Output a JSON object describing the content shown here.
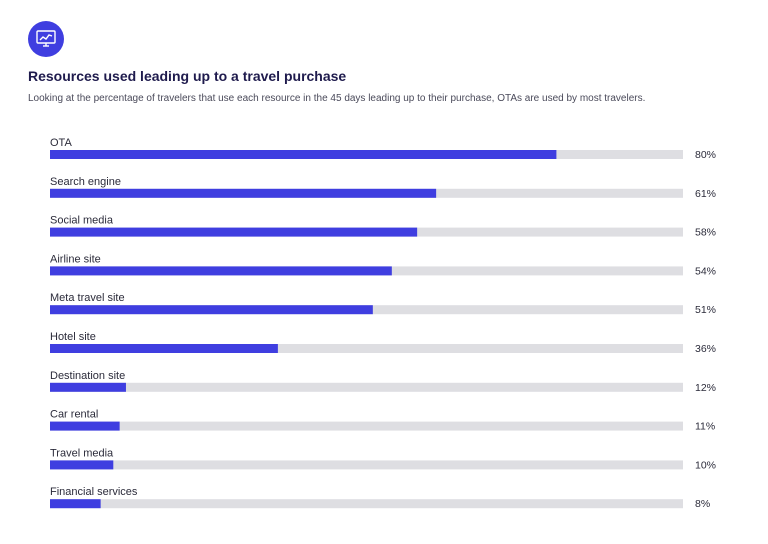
{
  "header": {
    "icon": "chart-monitor-icon",
    "accent_color": "#3f3ee0",
    "track_color": "#dedee2",
    "title": "Resources used leading up to a travel purchase",
    "subtitle": "Looking at the percentage of travelers that use each resource in the 45 days leading up to their purchase, OTAs are used by most travelers."
  },
  "chart_data": {
    "type": "bar",
    "orientation": "horizontal",
    "title": "Resources used leading up to a travel purchase",
    "xlabel": "",
    "ylabel": "",
    "xlim": [
      0,
      100
    ],
    "grid": false,
    "categories": [
      "OTA",
      "Search engine",
      "Social media",
      "Airline site",
      "Meta travel site",
      "Hotel site",
      "Destination site",
      "Car rental",
      "Travel media",
      "Financial services"
    ],
    "values": [
      80,
      61,
      58,
      54,
      51,
      36,
      12,
      11,
      10,
      8
    ],
    "value_labels": [
      "80%",
      "61%",
      "58%",
      "54%",
      "51%",
      "36%",
      "12%",
      "11%",
      "10%",
      "8%"
    ]
  }
}
